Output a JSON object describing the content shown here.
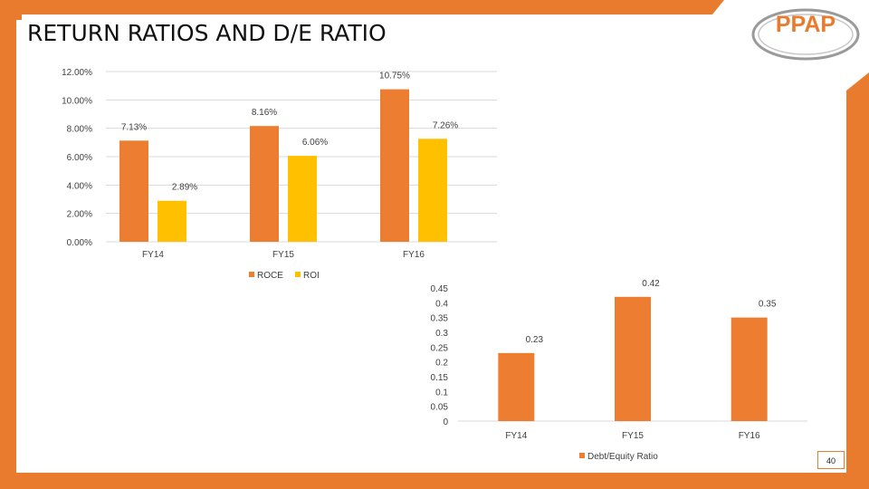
{
  "slide": {
    "title": "RETURN RATIOS AND D/E RATIO",
    "logo_text": "PPAP",
    "page_number": "40",
    "colors": {
      "orange": "#ED7D31",
      "yellow": "#FFC000",
      "frame": "#E97B2E"
    }
  },
  "chart_data": [
    {
      "type": "bar",
      "categories": [
        "FY14",
        "FY15",
        "FY16"
      ],
      "series": [
        {
          "name": "ROCE",
          "values": [
            7.13,
            8.16,
            10.75
          ],
          "labels": [
            "7.13%",
            "8.16%",
            "10.75%"
          ],
          "color": "#ED7D31"
        },
        {
          "name": "ROI",
          "values": [
            2.89,
            6.06,
            7.26
          ],
          "labels": [
            "2.89%",
            "6.06%",
            "7.26%"
          ],
          "color": "#FFC000"
        }
      ],
      "ylim": [
        0,
        12
      ],
      "yticks": [
        0,
        2,
        4,
        6,
        8,
        10,
        12
      ],
      "ytick_labels": [
        "0.00%",
        "2.00%",
        "4.00%",
        "6.00%",
        "8.00%",
        "10.00%",
        "12.00%"
      ],
      "grid": true,
      "legend": "bottom",
      "title": "",
      "xlabel": "",
      "ylabel": ""
    },
    {
      "type": "bar",
      "categories": [
        "FY14",
        "FY15",
        "FY16"
      ],
      "series": [
        {
          "name": "Debt/Equity Ratio",
          "values": [
            0.23,
            0.42,
            0.35
          ],
          "labels": [
            "0.23",
            "0.42",
            "0.35"
          ],
          "color": "#ED7D31"
        }
      ],
      "ylim": [
        0,
        0.45
      ],
      "yticks": [
        0,
        0.05,
        0.1,
        0.15,
        0.2,
        0.25,
        0.3,
        0.35,
        0.4,
        0.45
      ],
      "ytick_labels": [
        "0",
        "0.05",
        "0.1",
        "0.15",
        "0.2",
        "0.25",
        "0.3",
        "0.35",
        "0.4",
        "0.45"
      ],
      "grid": false,
      "legend": "bottom",
      "title": "",
      "xlabel": "",
      "ylabel": ""
    }
  ]
}
